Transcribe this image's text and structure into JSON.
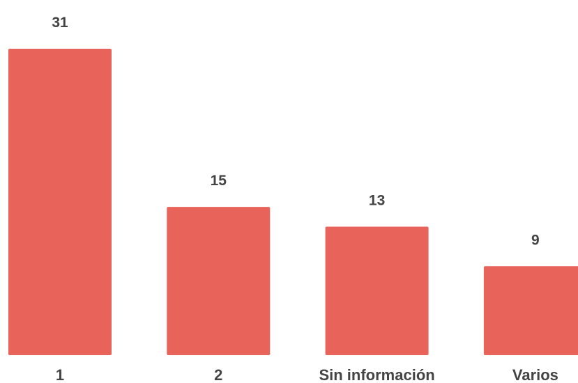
{
  "chart_data": {
    "type": "bar",
    "categories": [
      "1",
      "2",
      "Sin información",
      "Varios"
    ],
    "values": [
      31,
      15,
      13,
      9
    ],
    "data_labels": [
      "31",
      "15",
      "13",
      "9"
    ],
    "title": "",
    "xlabel": "",
    "ylabel": "",
    "ylim": [
      0,
      31
    ],
    "grid": false,
    "legend": "none",
    "bar_color": "#E8635A",
    "label_color": "#444444"
  }
}
